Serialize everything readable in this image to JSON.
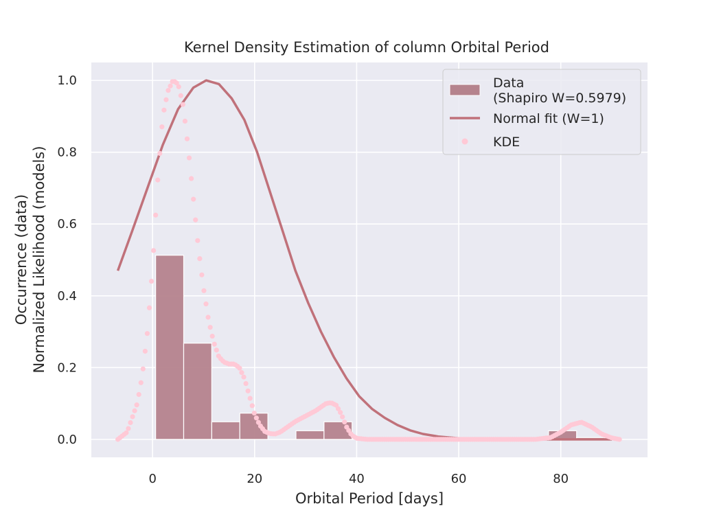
{
  "chart_data": {
    "type": "bar",
    "title": "Kernel Density Estimation of column Orbital Period",
    "xlabel": "Orbital Period [days]",
    "ylabel_lines": [
      "Occurrence (data)",
      "Normalized Likelihood (models)"
    ],
    "xlim": [
      -12,
      97
    ],
    "ylim": [
      -0.05,
      1.05
    ],
    "xticks": [
      0,
      20,
      40,
      60,
      80
    ],
    "yticks": [
      0.0,
      0.2,
      0.4,
      0.6,
      0.8,
      1.0
    ],
    "xtick_labels": [
      "0",
      "20",
      "40",
      "60",
      "80"
    ],
    "ytick_labels": [
      "0.0",
      "0.2",
      "0.4",
      "0.6",
      "0.8",
      "1.0"
    ],
    "grid": true,
    "legend_position": "top-right",
    "series": [
      {
        "name": "Data\n(Shapiro W=0.5979)",
        "kind": "histogram",
        "color": "#b5838d",
        "bins": [
          {
            "x0": 0.6,
            "x1": 6.1,
            "value": 0.513
          },
          {
            "x0": 6.1,
            "x1": 11.6,
            "value": 0.268
          },
          {
            "x0": 11.6,
            "x1": 17.1,
            "value": 0.049
          },
          {
            "x0": 17.1,
            "x1": 22.6,
            "value": 0.073
          },
          {
            "x0": 22.6,
            "x1": 28.1,
            "value": 0.0
          },
          {
            "x0": 28.1,
            "x1": 33.6,
            "value": 0.024
          },
          {
            "x0": 33.6,
            "x1": 39.1,
            "value": 0.049
          },
          {
            "x0": 39.1,
            "x1": 44.6,
            "value": 0.0
          },
          {
            "x0": 44.6,
            "x1": 50.1,
            "value": 0.0
          },
          {
            "x0": 50.1,
            "x1": 55.6,
            "value": 0.0
          },
          {
            "x0": 55.6,
            "x1": 61.1,
            "value": 0.0
          },
          {
            "x0": 61.1,
            "x1": 66.6,
            "value": 0.0
          },
          {
            "x0": 66.6,
            "x1": 72.1,
            "value": 0.0
          },
          {
            "x0": 72.1,
            "x1": 77.6,
            "value": 0.0
          },
          {
            "x0": 77.6,
            "x1": 83.1,
            "value": 0.024
          },
          {
            "x0": 83.1,
            "x1": 88.6,
            "value": 0.005
          }
        ]
      },
      {
        "name": "Normal fit (W=1)",
        "kind": "line",
        "color": "#c0717a",
        "x": [
          -6.8,
          -4,
          -1,
          2,
          5,
          8,
          10.5,
          13,
          15.5,
          18,
          20.5,
          23,
          25.5,
          28,
          30.5,
          33,
          35.5,
          38,
          40.5,
          43,
          45.5,
          48,
          50.5,
          53,
          56,
          60,
          65,
          70,
          75,
          80,
          85,
          90
        ],
        "y": [
          0.47,
          0.58,
          0.7,
          0.82,
          0.92,
          0.98,
          1.0,
          0.99,
          0.95,
          0.89,
          0.8,
          0.69,
          0.58,
          0.47,
          0.38,
          0.3,
          0.23,
          0.17,
          0.12,
          0.085,
          0.06,
          0.04,
          0.025,
          0.015,
          0.008,
          0.003,
          0.001,
          0.0,
          0.0,
          0.0,
          0.0,
          0.0
        ]
      },
      {
        "name": "KDE",
        "kind": "scatter",
        "color": "#ffc9d6",
        "x": [
          -6.8,
          -5,
          -3,
          -2,
          -1,
          0,
          1,
          2,
          3,
          4,
          5,
          6,
          7,
          8,
          9,
          10,
          11,
          12,
          13,
          14,
          15,
          16,
          17,
          18,
          19,
          20,
          21,
          22,
          23,
          24,
          25,
          26,
          28,
          30,
          32,
          34,
          35,
          36,
          37,
          38,
          39,
          40,
          42,
          45,
          50,
          55,
          60,
          65,
          70,
          75,
          78,
          80,
          82,
          84,
          86,
          88,
          90,
          91.5
        ],
        "y": [
          0.0,
          0.02,
          0.1,
          0.18,
          0.3,
          0.48,
          0.72,
          0.9,
          0.97,
          1.0,
          0.99,
          0.93,
          0.81,
          0.67,
          0.53,
          0.42,
          0.33,
          0.27,
          0.23,
          0.215,
          0.21,
          0.21,
          0.2,
          0.17,
          0.12,
          0.07,
          0.04,
          0.022,
          0.016,
          0.015,
          0.02,
          0.03,
          0.05,
          0.065,
          0.08,
          0.1,
          0.102,
          0.095,
          0.07,
          0.035,
          0.012,
          0.003,
          0.0,
          0.0,
          0.0,
          0.0,
          0.0,
          0.0,
          0.0,
          0.0,
          0.005,
          0.02,
          0.04,
          0.048,
          0.035,
          0.015,
          0.004,
          0.0
        ]
      }
    ]
  }
}
